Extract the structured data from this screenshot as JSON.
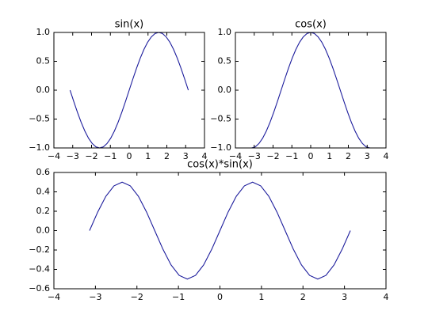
{
  "chart_data": [
    {
      "type": "line",
      "title": "sin(x)",
      "x": [
        -3.1416,
        -2.9452,
        -2.7489,
        -2.5525,
        -2.3562,
        -2.1598,
        -1.9635,
        -1.7671,
        -1.5708,
        -1.3744,
        -1.1781,
        -0.9817,
        -0.7854,
        -0.589,
        -0.3927,
        -0.1963,
        0,
        0.1963,
        0.3927,
        0.589,
        0.7854,
        0.9817,
        1.1781,
        1.3744,
        1.5708,
        1.7671,
        1.9635,
        2.1598,
        2.3562,
        2.5525,
        2.7489,
        2.9452,
        3.1416
      ],
      "series": [
        {
          "color": "#1c1c9c",
          "values": [
            0,
            -0.1951,
            -0.3827,
            -0.5556,
            -0.7071,
            -0.8315,
            -0.9239,
            -0.9808,
            -1,
            -0.9808,
            -0.9239,
            -0.8315,
            -0.7071,
            -0.5556,
            -0.3827,
            -0.1951,
            0,
            0.1951,
            0.3827,
            0.5556,
            0.7071,
            0.8315,
            0.9239,
            0.9808,
            1,
            0.9808,
            0.9239,
            0.8315,
            0.7071,
            0.5556,
            0.3827,
            0.1951,
            0
          ]
        }
      ],
      "xlim": [
        -4,
        4
      ],
      "ylim": [
        -1,
        1
      ],
      "xticks": [
        {
          "value": -4,
          "label": "−4"
        },
        {
          "value": -3,
          "label": "−3"
        },
        {
          "value": -2,
          "label": "−2"
        },
        {
          "value": -1,
          "label": "−1"
        },
        0,
        1,
        2,
        3,
        4
      ],
      "yticks": [
        {
          "value": -1,
          "label": "−1.0"
        },
        {
          "value": -0.5,
          "label": "−0.5"
        },
        {
          "value": 0,
          "label": "0.0"
        },
        {
          "value": 0.5,
          "label": "0.5"
        },
        {
          "value": 1,
          "label": "1.0"
        }
      ]
    },
    {
      "type": "line",
      "title": "cos(x)",
      "x": [
        -3.1416,
        -2.9452,
        -2.7489,
        -2.5525,
        -2.3562,
        -2.1598,
        -1.9635,
        -1.7671,
        -1.5708,
        -1.3744,
        -1.1781,
        -0.9817,
        -0.7854,
        -0.589,
        -0.3927,
        -0.1963,
        0,
        0.1963,
        0.3927,
        0.589,
        0.7854,
        0.9817,
        1.1781,
        1.3744,
        1.5708,
        1.7671,
        1.9635,
        2.1598,
        2.3562,
        2.5525,
        2.7489,
        2.9452,
        3.1416
      ],
      "series": [
        {
          "color": "#1c1c9c",
          "values": [
            -1,
            -0.9808,
            -0.9239,
            -0.8315,
            -0.7071,
            -0.5556,
            -0.3827,
            -0.1951,
            0,
            0.1951,
            0.3827,
            0.5556,
            0.7071,
            0.8315,
            0.9239,
            0.9808,
            1,
            0.9808,
            0.9239,
            0.8315,
            0.7071,
            0.5556,
            0.3827,
            0.1951,
            0,
            -0.1951,
            -0.3827,
            -0.5556,
            -0.7071,
            -0.8315,
            -0.9239,
            -0.9808,
            -1
          ]
        }
      ],
      "xlim": [
        -4,
        4
      ],
      "ylim": [
        -1,
        1
      ],
      "xticks": [
        {
          "value": -4,
          "label": "−4"
        },
        {
          "value": -3,
          "label": "−3"
        },
        {
          "value": -2,
          "label": "−2"
        },
        {
          "value": -1,
          "label": "−1"
        },
        0,
        1,
        2,
        3,
        4
      ],
      "yticks": [
        {
          "value": -1,
          "label": "−1.0"
        },
        {
          "value": -0.5,
          "label": "−0.5"
        },
        {
          "value": 0,
          "label": "0.0"
        },
        {
          "value": 0.5,
          "label": "0.5"
        },
        {
          "value": 1,
          "label": "1.0"
        }
      ]
    },
    {
      "type": "line",
      "title": "cos(x)*sin(x)",
      "x": [
        -3.1416,
        -2.9452,
        -2.7489,
        -2.5525,
        -2.3562,
        -2.1598,
        -1.9635,
        -1.7671,
        -1.5708,
        -1.3744,
        -1.1781,
        -0.9817,
        -0.7854,
        -0.589,
        -0.3927,
        -0.1963,
        0,
        0.1963,
        0.3927,
        0.589,
        0.7854,
        0.9817,
        1.1781,
        1.3744,
        1.5708,
        1.7671,
        1.9635,
        2.1598,
        2.3562,
        2.5525,
        2.7489,
        2.9452,
        3.1416
      ],
      "series": [
        {
          "color": "#1c1c9c",
          "values": [
            0,
            0.1913,
            0.3536,
            0.4619,
            0.5,
            0.4619,
            0.3536,
            0.1913,
            0,
            -0.1913,
            -0.3536,
            -0.4619,
            -0.5,
            -0.4619,
            -0.3536,
            -0.1913,
            0,
            0.1913,
            0.3536,
            0.4619,
            0.5,
            0.4619,
            0.3536,
            0.1913,
            0,
            -0.1913,
            -0.3536,
            -0.4619,
            -0.5,
            -0.4619,
            -0.3536,
            -0.1913,
            0
          ]
        }
      ],
      "xlim": [
        -4,
        4
      ],
      "ylim": [
        -0.6,
        0.6
      ],
      "xticks": [
        {
          "value": -4,
          "label": "−4"
        },
        {
          "value": -3,
          "label": "−3"
        },
        {
          "value": -2,
          "label": "−2"
        },
        {
          "value": -1,
          "label": "−1"
        },
        0,
        1,
        2,
        3,
        4
      ],
      "yticks": [
        {
          "value": -0.6,
          "label": "−0.6"
        },
        {
          "value": -0.4,
          "label": "−0.4"
        },
        {
          "value": -0.2,
          "label": "−0.2"
        },
        {
          "value": 0,
          "label": "0.0"
        },
        {
          "value": 0.2,
          "label": "0.2"
        },
        {
          "value": 0.4,
          "label": "0.4"
        },
        {
          "value": 0.6,
          "label": "0.6"
        }
      ]
    }
  ]
}
